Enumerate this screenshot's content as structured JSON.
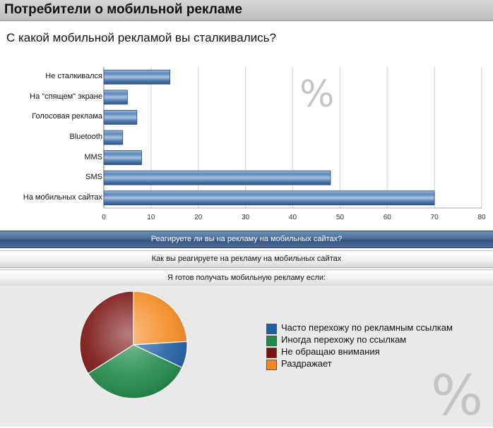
{
  "header": {
    "title": "Потребители о мобильной рекламе"
  },
  "question": "С какой мобильной рекламой вы сталкивались?",
  "watermark": "%",
  "colors": {
    "bar": "#4a79b0",
    "accent_header": "#4a6d98",
    "pie_panel": "#e9e9e9"
  },
  "chart_data": [
    {
      "type": "bar",
      "orientation": "horizontal",
      "categories": [
        "Не сталкивался",
        "На \"спящем\" экране",
        "Голосовая реклама",
        "Bluetooth",
        "MMS",
        "SMS",
        "На мобильных сайтах"
      ],
      "values": [
        14,
        5,
        7,
        4,
        8,
        48,
        70
      ],
      "xlim": [
        0,
        80
      ],
      "xticks": [
        "0",
        "10",
        "20",
        "30",
        "40",
        "50",
        "60",
        "70",
        "80"
      ],
      "title": "С какой мобильной рекламой вы сталкивались?",
      "grid": true
    },
    {
      "type": "pie",
      "labels": [
        "Часто перехожу по рекламным ссылкам",
        "Иногда перехожу по ссылкам",
        "Не обращаю внимания",
        "Раздражает"
      ],
      "values": [
        8,
        34,
        34,
        24
      ],
      "colors": [
        "#1f5fa6",
        "#1f8a4a",
        "#7a1212",
        "#f5891f"
      ],
      "legend_position": "right"
    }
  ],
  "accordion": [
    {
      "label": "Реагируете ли вы на рекламу на мобильных сайтах?",
      "active": true
    },
    {
      "label": "Как вы реагируете на рекламу на мобильных  сайтах",
      "active": false
    },
    {
      "label": "Я готов получать мобильную рекламу если:",
      "active": false
    }
  ]
}
